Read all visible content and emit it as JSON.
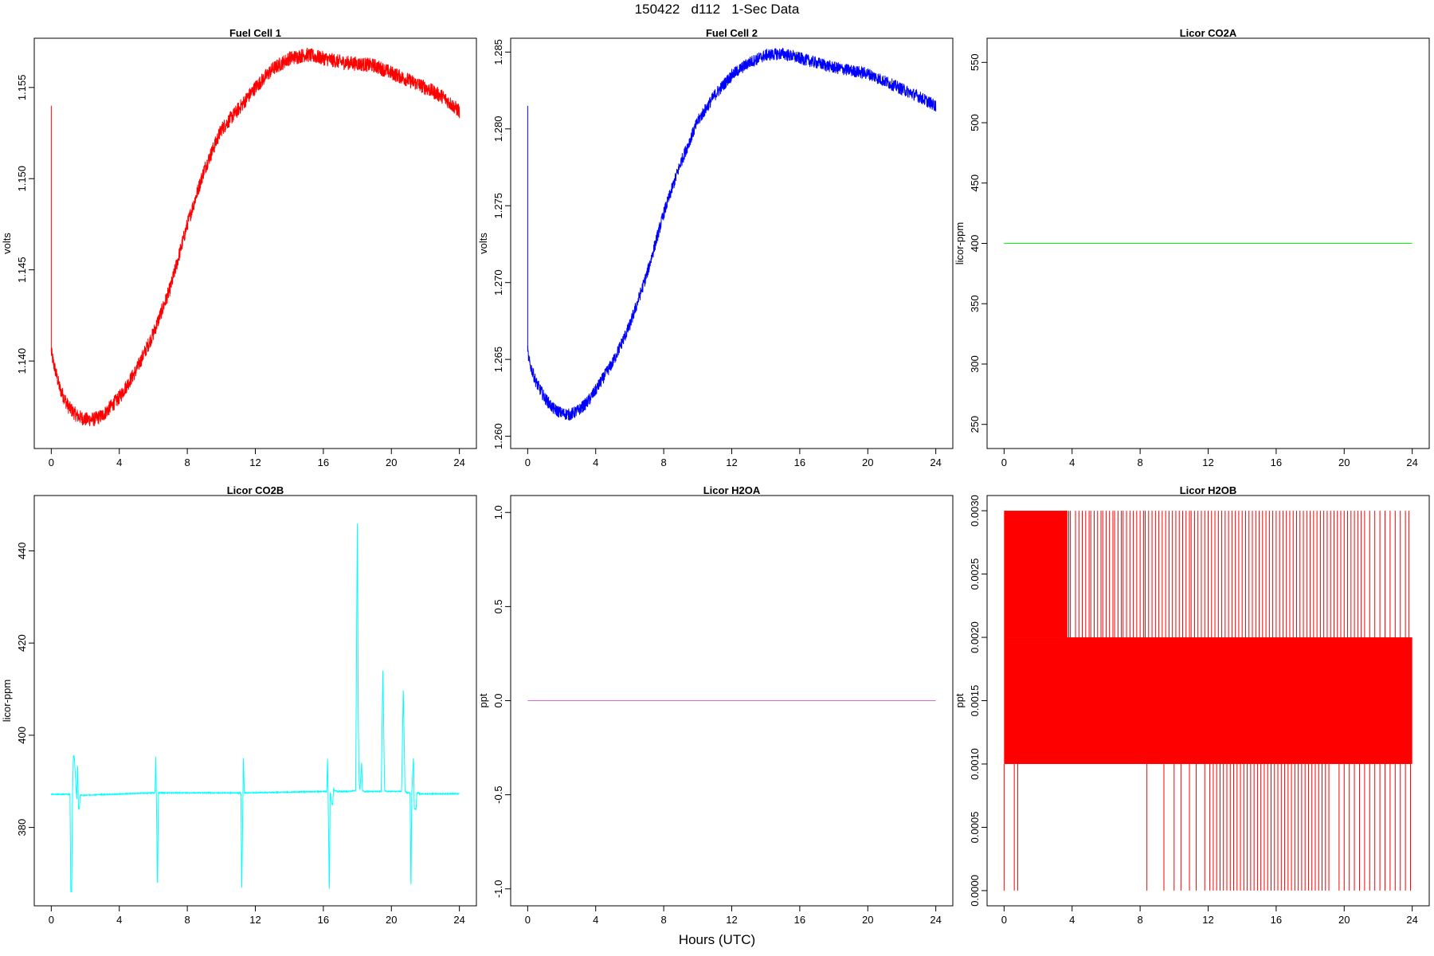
{
  "page": {
    "title": "150422   d112   1-Sec Data",
    "xlabel": "Hours (UTC)"
  },
  "chart_data": [
    {
      "type": "line",
      "title": "Fuel Cell 1",
      "xlabel": "",
      "ylabel": "volts",
      "color": "#ff0000",
      "xlim": [
        -1,
        25
      ],
      "ylim": [
        1.1352,
        1.1577
      ],
      "xticks": [
        0,
        4,
        8,
        12,
        16,
        20,
        24
      ],
      "yticks": [
        1.14,
        1.145,
        1.15,
        1.155
      ],
      "ytick_labels": [
        "1.140",
        "1.145",
        "1.150",
        "1.155"
      ],
      "spikes": [
        {
          "x": 0.0,
          "y": 1.154
        }
      ],
      "series": [
        {
          "x": [
            0.0,
            0.1,
            0.5,
            1.0,
            1.5,
            2.0,
            2.5,
            3.0,
            3.5,
            4.0,
            5.0,
            6.0,
            7.0,
            8.0,
            9.0,
            10.0,
            11.0,
            12.0,
            13.0,
            14.0,
            15.0,
            16.0,
            17.0,
            18.0,
            19.0,
            20.0,
            21.0,
            22.0,
            23.0,
            24.0
          ],
          "y": [
            1.1405,
            1.14,
            1.1385,
            1.1375,
            1.137,
            1.1368,
            1.1368,
            1.137,
            1.1375,
            1.138,
            1.1395,
            1.1415,
            1.144,
            1.1475,
            1.1505,
            1.1527,
            1.1538,
            1.155,
            1.156,
            1.1566,
            1.1568,
            1.1566,
            1.1564,
            1.1563,
            1.1562,
            1.1558,
            1.1554,
            1.155,
            1.1545,
            1.1537
          ],
          "noise": 0.0004
        }
      ]
    },
    {
      "type": "line",
      "title": "Fuel Cell 2",
      "xlabel": "",
      "ylabel": "volts",
      "color": "#0000ff",
      "xlim": [
        -1,
        25
      ],
      "ylim": [
        1.2592,
        1.2859
      ],
      "xticks": [
        0,
        4,
        8,
        12,
        16,
        20,
        24
      ],
      "yticks": [
        1.26,
        1.265,
        1.27,
        1.275,
        1.28,
        1.285
      ],
      "ytick_labels": [
        "1.260",
        "1.265",
        "1.270",
        "1.275",
        "1.280",
        "1.285"
      ],
      "spikes": [
        {
          "x": 0.0,
          "y": 1.2815
        }
      ],
      "series": [
        {
          "x": [
            0.0,
            0.1,
            0.5,
            1.0,
            1.5,
            2.0,
            2.5,
            3.0,
            3.5,
            4.0,
            5.0,
            6.0,
            7.0,
            8.0,
            9.0,
            10.0,
            11.0,
            12.0,
            13.0,
            14.0,
            15.0,
            16.0,
            17.0,
            18.0,
            19.0,
            20.0,
            21.0,
            22.0,
            23.0,
            24.0
          ],
          "y": [
            1.2655,
            1.2648,
            1.2635,
            1.2625,
            1.2618,
            1.2615,
            1.2614,
            1.2617,
            1.2622,
            1.263,
            1.2648,
            1.2672,
            1.2705,
            1.2745,
            1.2778,
            1.2805,
            1.2822,
            1.2835,
            1.2843,
            1.2848,
            1.2849,
            1.2846,
            1.2843,
            1.284,
            1.2838,
            1.2836,
            1.2831,
            1.2826,
            1.2821,
            1.2815
          ],
          "noise": 0.0004
        }
      ]
    },
    {
      "type": "line",
      "title": "Licor CO2A",
      "xlabel": "",
      "ylabel": "licor-ppm",
      "color": "#00ff00",
      "xlim": [
        -1,
        25
      ],
      "ylim": [
        230,
        570
      ],
      "xticks": [
        0,
        4,
        8,
        12,
        16,
        20,
        24
      ],
      "yticks": [
        250,
        300,
        350,
        400,
        450,
        500,
        550
      ],
      "ytick_labels": [
        "250",
        "300",
        "350",
        "400",
        "450",
        "500",
        "550"
      ],
      "series": [
        {
          "x": [
            0,
            24
          ],
          "y": [
            400,
            400
          ],
          "noise": 0
        }
      ]
    },
    {
      "type": "line",
      "title": "Licor CO2B",
      "xlabel": "",
      "ylabel": "licor-ppm",
      "color": "#00ffff",
      "xlim": [
        -1,
        25
      ],
      "ylim": [
        363,
        452
      ],
      "xticks": [
        0,
        4,
        8,
        12,
        16,
        20,
        24
      ],
      "yticks": [
        380,
        400,
        420,
        440
      ],
      "ytick_labels": [
        "380",
        "400",
        "420",
        "440"
      ],
      "series": [
        {
          "x": [
            0.0,
            1.1,
            1.15,
            1.2,
            1.25,
            1.3,
            1.35,
            1.5,
            1.55,
            1.6,
            1.65,
            1.7,
            1.75,
            1.9,
            6.0,
            6.1,
            6.15,
            6.25,
            6.3,
            6.4,
            11.0,
            11.15,
            11.2,
            11.3,
            11.35,
            11.45,
            16.0,
            16.2,
            16.25,
            16.35,
            16.4,
            16.5,
            16.55,
            16.6,
            16.65,
            16.75,
            16.8,
            17.5,
            17.9,
            18.0,
            18.05,
            18.1,
            18.15,
            18.25,
            18.3,
            18.4,
            18.5,
            19.4,
            19.5,
            19.6,
            19.7,
            20.6,
            20.7,
            20.8,
            20.9,
            21.1,
            21.15,
            21.2,
            21.3,
            21.35,
            21.45,
            21.5,
            21.6,
            21.65,
            21.8,
            24.0
          ],
          "y": [
            387.2,
            387.2,
            366.0,
            366.0,
            387.2,
            395.5,
            395.5,
            386.0,
            394.0,
            384.0,
            384.0,
            387.0,
            387.0,
            387.0,
            387.5,
            387.5,
            395.5,
            366.0,
            387.5,
            387.5,
            387.5,
            387.5,
            366.0,
            395.5,
            387.5,
            387.5,
            387.8,
            387.8,
            395.5,
            366.0,
            387.8,
            385.0,
            385.0,
            388.5,
            388.0,
            388.0,
            387.8,
            387.8,
            388.0,
            448.5,
            405.0,
            390.0,
            388.0,
            394.0,
            388.0,
            387.8,
            387.8,
            387.8,
            414.5,
            388.0,
            387.8,
            387.8,
            410.5,
            388.0,
            387.5,
            387.5,
            366.0,
            387.5,
            395.5,
            384.0,
            384.0,
            387.5,
            387.5,
            387.3,
            387.3,
            387.3
          ],
          "noise": 0.1
        }
      ]
    },
    {
      "type": "line",
      "title": "Licor H2OA",
      "xlabel": "",
      "ylabel": "ppt",
      "color": "#dd66dd",
      "xlim": [
        -1,
        25
      ],
      "ylim": [
        -1.09,
        1.09
      ],
      "xticks": [
        0,
        4,
        8,
        12,
        16,
        20,
        24
      ],
      "yticks": [
        -1.0,
        -0.5,
        0.0,
        0.5,
        1.0
      ],
      "ytick_labels": [
        "-1.0",
        "-0.5",
        "0.0",
        "0.5",
        "1.0"
      ],
      "series": [
        {
          "x": [
            0,
            24
          ],
          "y": [
            0,
            0
          ],
          "noise": 0
        }
      ]
    },
    {
      "type": "line",
      "title": "Licor H2OB",
      "xlabel": "",
      "ylabel": "ppt",
      "color": "#ff0000",
      "xlim": [
        -1,
        25
      ],
      "ylim": [
        -0.00012,
        0.00312
      ],
      "xticks": [
        0,
        4,
        8,
        12,
        16,
        20,
        24
      ],
      "yticks": [
        0.0,
        0.0005,
        0.001,
        0.0015,
        0.002,
        0.0025,
        0.003
      ],
      "ytick_labels": [
        "0.0000",
        "0.0005",
        "0.0010",
        "0.0015",
        "0.0020",
        "0.0025",
        "0.0030"
      ],
      "band": {
        "x": [
          0,
          24
        ],
        "y": [
          0.001,
          0.002
        ]
      },
      "upper_spike_level": 0.003,
      "lower_spike_level": 0.0,
      "dense_upper_range": [
        0.0,
        3.7
      ],
      "upper_spike_x": [
        3.7,
        3.8,
        3.9,
        4.2,
        4.4,
        4.6,
        4.8,
        5.0,
        5.1,
        5.3,
        5.5,
        5.7,
        5.8,
        6.0,
        6.2,
        6.4,
        6.5,
        6.7,
        6.9,
        7.0,
        7.2,
        7.4,
        7.6,
        7.8,
        8.0,
        8.2,
        8.3,
        8.5,
        8.7,
        8.9,
        9.1,
        9.3,
        9.5,
        9.7,
        9.9,
        10.1,
        10.3,
        10.5,
        10.7,
        10.9,
        11.0,
        11.2,
        11.4,
        11.6,
        11.8,
        12.0,
        12.2,
        12.4,
        12.6,
        12.8,
        13.0,
        13.2,
        13.4,
        13.6,
        13.8,
        14.0,
        14.2,
        14.4,
        14.6,
        14.8,
        15.0,
        15.2,
        15.4,
        15.6,
        15.8,
        16.0,
        16.2,
        16.4,
        16.6,
        16.8,
        17.0,
        17.2,
        17.4,
        17.6,
        17.8,
        18.0,
        18.2,
        18.4,
        18.6,
        18.8,
        19.0,
        19.2,
        19.4,
        19.6,
        19.8,
        20.0,
        20.2,
        20.4,
        20.6,
        20.8,
        21.0,
        21.2,
        21.5,
        21.8,
        22.1,
        22.4,
        22.7,
        23.0,
        23.3,
        23.6,
        23.8
      ],
      "lower_spike_x": [
        0.0,
        0.6,
        0.8,
        8.4,
        9.4,
        10.0,
        10.4,
        10.9,
        11.3,
        11.8,
        12.1,
        12.3,
        12.5,
        12.7,
        12.9,
        13.1,
        13.3,
        13.5,
        13.7,
        13.9,
        14.1,
        14.3,
        14.5,
        14.7,
        14.9,
        15.1,
        15.3,
        15.5,
        15.7,
        15.9,
        16.1,
        16.3,
        16.5,
        16.7,
        16.9,
        17.1,
        17.3,
        17.5,
        17.7,
        17.9,
        18.1,
        18.3,
        18.5,
        18.7,
        18.9,
        19.1,
        19.7,
        20.0,
        20.3,
        20.6,
        20.9,
        21.2,
        21.5,
        21.8,
        22.1,
        22.4,
        22.7,
        23.0,
        23.3,
        23.6,
        23.9
      ]
    }
  ]
}
